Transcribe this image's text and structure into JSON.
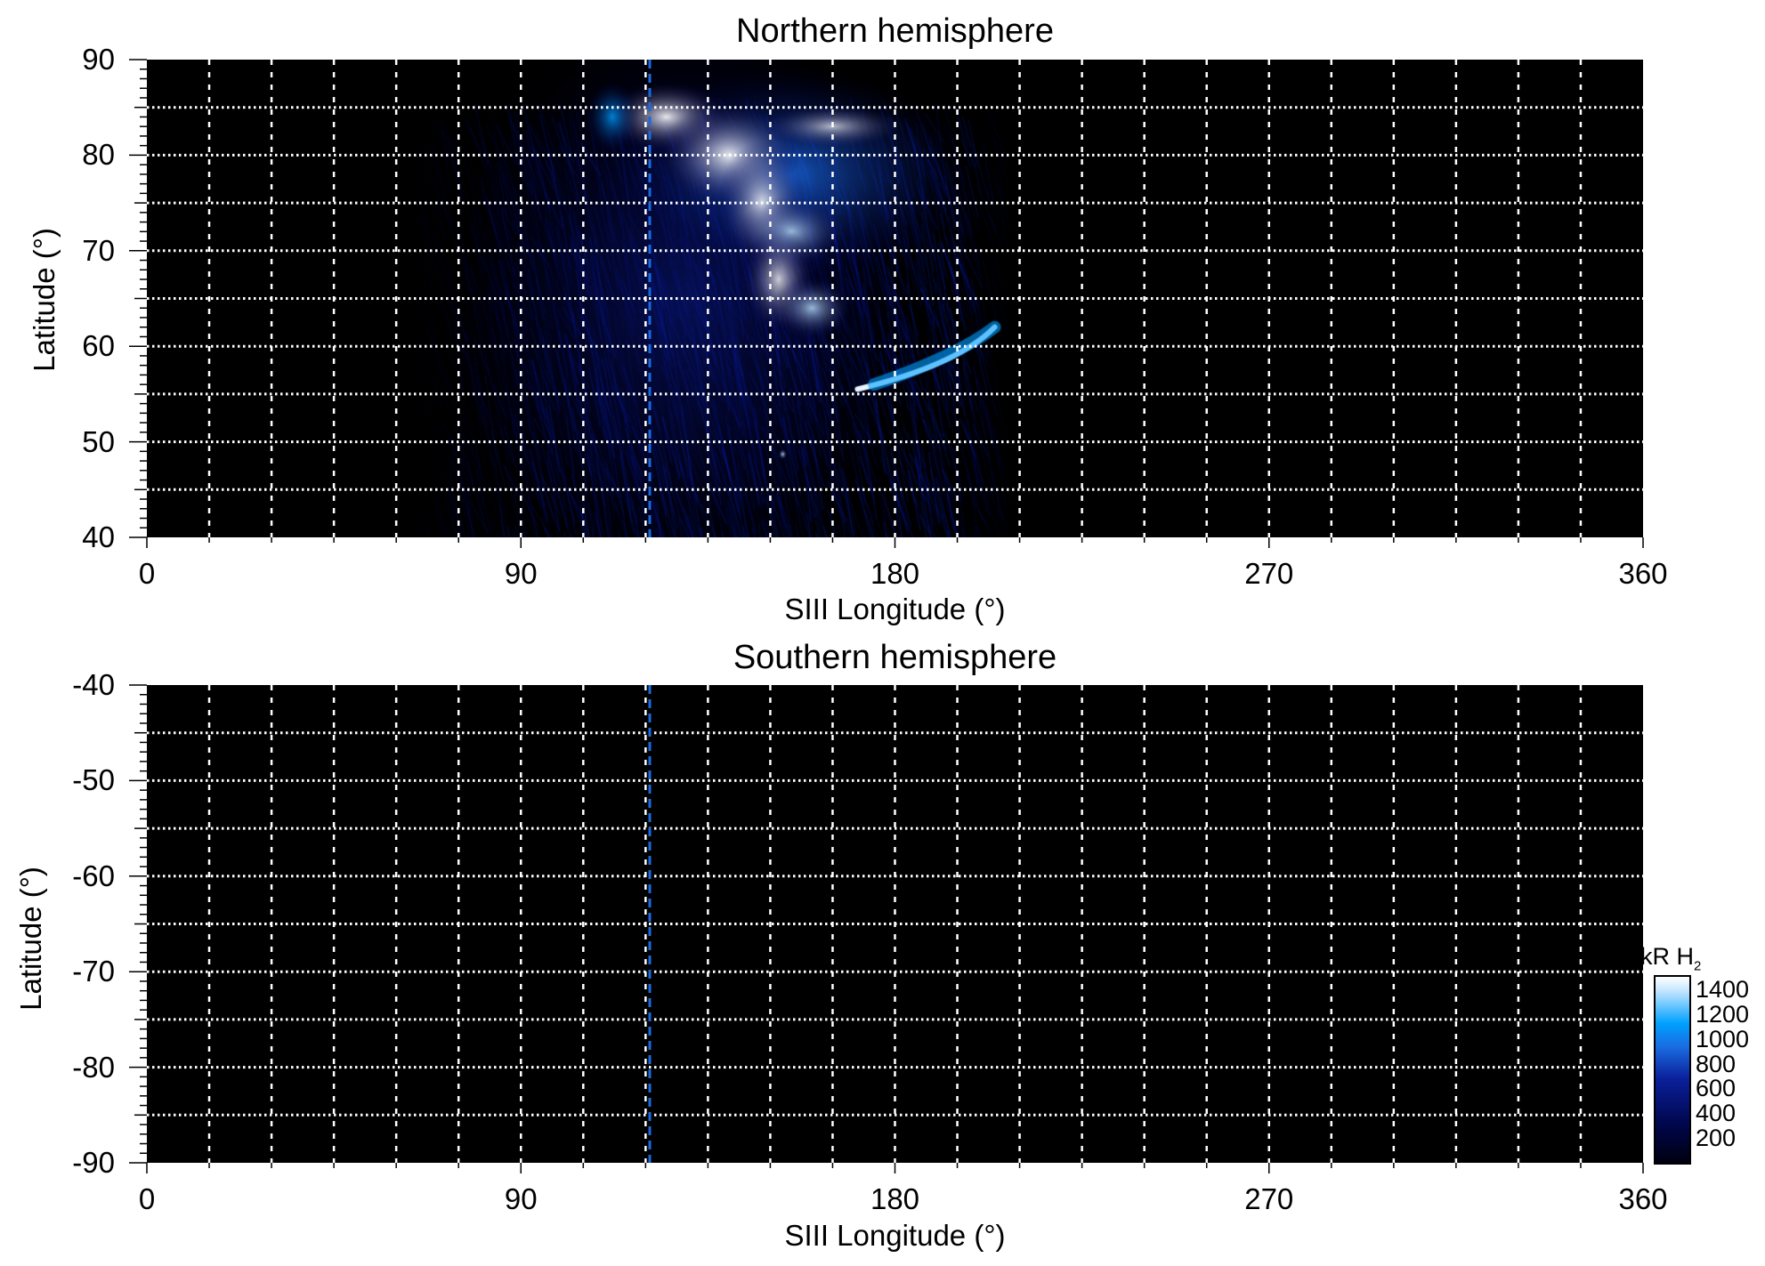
{
  "chart_data": [
    {
      "type": "heatmap",
      "title": "Northern hemisphere",
      "xlabel": "SIII Longitude (°)",
      "ylabel": "Latitude (°)",
      "xlim": [
        0,
        360
      ],
      "ylim": [
        40,
        90
      ],
      "xticks": [
        "0",
        "90",
        "180",
        "270",
        "360"
      ],
      "yticks": [
        "40",
        "50",
        "60",
        "70",
        "80",
        "90"
      ],
      "grid": {
        "vertical_step_deg": 15,
        "horizontal_step_deg": 5,
        "style": "white dotted"
      },
      "reference_line": {
        "longitude": 121,
        "color": "#1a6ae0",
        "style": "dashed"
      },
      "features": {
        "emission_region_lon": [
          60,
          205
        ],
        "emission_region_lat": [
          40,
          87
        ],
        "bright_polar_region_lon": [
          105,
          165
        ],
        "bright_polar_region_lat": [
          75,
          87
        ],
        "main_emission_lat": [
          58,
          75
        ],
        "arc_from": [
          170,
          55
        ],
        "arc_to": [
          205,
          62
        ]
      }
    },
    {
      "type": "heatmap",
      "title": "Southern hemisphere",
      "xlabel": "SIII Longitude (°)",
      "ylabel": "Latitude (°)",
      "xlim": [
        0,
        360
      ],
      "ylim": [
        -90,
        -40
      ],
      "xticks": [
        "0",
        "90",
        "180",
        "270",
        "360"
      ],
      "yticks": [
        "-40",
        "-50",
        "-60",
        "-70",
        "-80",
        "-90"
      ],
      "grid": {
        "vertical_step_deg": 15,
        "horizontal_step_deg": 5,
        "style": "white dotted"
      },
      "reference_line": {
        "longitude": 121,
        "color": "#1a6ae0",
        "style": "dashed"
      },
      "features": "no emission"
    }
  ],
  "colorbar": {
    "title": "kR H",
    "title_subscript": "2",
    "ticks": [
      "1400",
      "1200",
      "1000",
      "800",
      "600",
      "400",
      "200"
    ],
    "range": [
      0,
      1500
    ],
    "colors": [
      "#000010",
      "#00064a",
      "#0a1f9a",
      "#1a6ae0",
      "#00a0ff",
      "#ffffff"
    ]
  }
}
